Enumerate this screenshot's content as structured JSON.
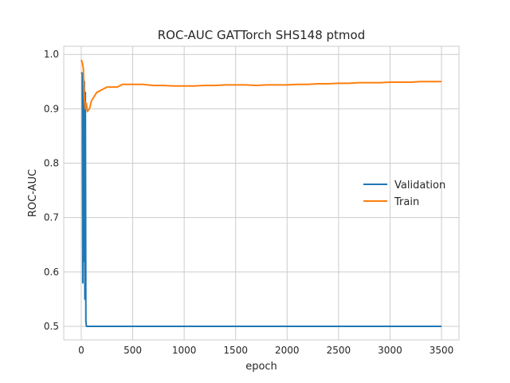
{
  "chart_data": {
    "type": "line",
    "title": "ROC-AUC GATTorch SHS148 ptmod",
    "xlabel": "epoch",
    "ylabel": "ROC-AUC",
    "xlim": [
      -170,
      3670
    ],
    "ylim": [
      0.475,
      1.015
    ],
    "xticks": [
      0,
      500,
      1000,
      1500,
      2000,
      2500,
      3000,
      3500
    ],
    "yticks": [
      0.5,
      0.6,
      0.7,
      0.8,
      0.9,
      1.0
    ],
    "ytick_labels": [
      "0.5",
      "0.6",
      "0.7",
      "0.8",
      "0.9",
      "1.0"
    ],
    "grid": true,
    "legend_position": "center-right",
    "series": [
      {
        "name": "Validation",
        "color": "#1f77b4",
        "x": [
          0,
          5,
          10,
          15,
          20,
          25,
          30,
          35,
          40,
          45,
          50,
          60,
          100,
          500,
          1000,
          1500,
          2000,
          2500,
          3000,
          3500
        ],
        "y": [
          0.965,
          0.966,
          0.965,
          0.58,
          0.96,
          0.62,
          0.95,
          0.55,
          0.93,
          0.51,
          0.5,
          0.5,
          0.5,
          0.5,
          0.5,
          0.5,
          0.5,
          0.5,
          0.5,
          0.5
        ]
      },
      {
        "name": "Train",
        "color": "#ff7f0e",
        "x": [
          0,
          10,
          20,
          30,
          40,
          50,
          60,
          80,
          100,
          150,
          200,
          250,
          300,
          350,
          400,
          500,
          600,
          700,
          800,
          900,
          1000,
          1100,
          1200,
          1300,
          1400,
          1500,
          1600,
          1700,
          1800,
          1900,
          2000,
          2100,
          2200,
          2300,
          2400,
          2500,
          2600,
          2700,
          2800,
          2900,
          3000,
          3100,
          3200,
          3300,
          3400,
          3500
        ],
        "y": [
          0.99,
          0.985,
          0.975,
          0.92,
          0.9,
          0.91,
          0.895,
          0.9,
          0.915,
          0.93,
          0.935,
          0.94,
          0.94,
          0.94,
          0.945,
          0.945,
          0.945,
          0.943,
          0.943,
          0.942,
          0.942,
          0.942,
          0.943,
          0.943,
          0.944,
          0.944,
          0.944,
          0.943,
          0.944,
          0.944,
          0.944,
          0.945,
          0.945,
          0.946,
          0.946,
          0.947,
          0.947,
          0.948,
          0.948,
          0.948,
          0.949,
          0.949,
          0.949,
          0.95,
          0.95,
          0.95
        ]
      }
    ]
  }
}
